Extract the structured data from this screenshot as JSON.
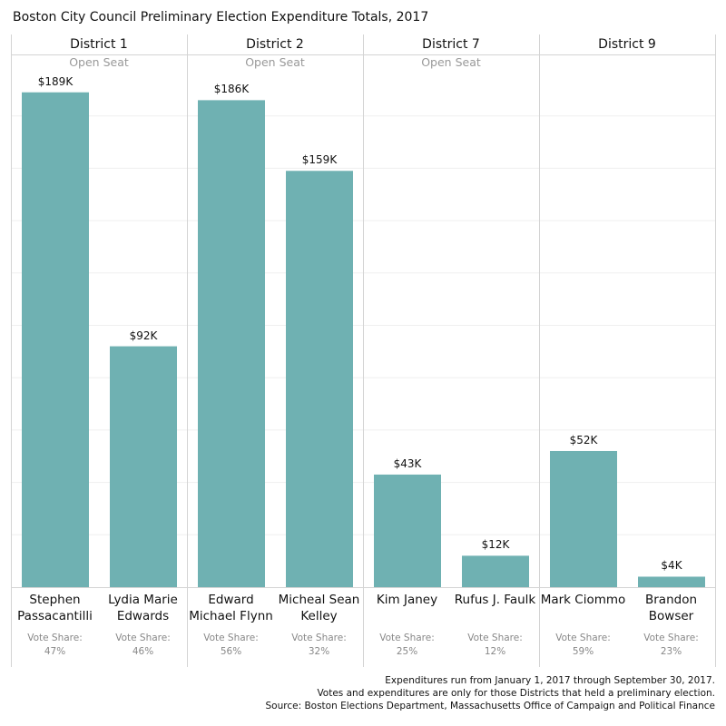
{
  "title": "Boston City Council Preliminary Election Expenditure Totals, 2017",
  "chart_data": {
    "type": "bar",
    "title": "Boston City Council Preliminary Election Expenditure Totals, 2017",
    "ylim": [
      0,
      200
    ],
    "grid": true,
    "bar_color": "#6fb1b2",
    "vote_share_label": "Vote Share:",
    "districts": [
      {
        "name": "District 1",
        "subtitle": "Open Seat",
        "candidates": [
          {
            "name": [
              "Stephen",
              "Passacantilli"
            ],
            "value": 189,
            "label": "$189K",
            "vote_share": "47%"
          },
          {
            "name": [
              "Lydia Marie",
              "Edwards"
            ],
            "value": 92,
            "label": "$92K",
            "vote_share": "46%"
          }
        ]
      },
      {
        "name": "District 2",
        "subtitle": "Open Seat",
        "candidates": [
          {
            "name": [
              "Edward",
              "Michael Flynn"
            ],
            "value": 186,
            "label": "$186K",
            "vote_share": "56%"
          },
          {
            "name": [
              "Micheal Sean",
              "Kelley"
            ],
            "value": 159,
            "label": "$159K",
            "vote_share": "32%"
          }
        ]
      },
      {
        "name": "District 7",
        "subtitle": "Open Seat",
        "candidates": [
          {
            "name": [
              "Kim Janey"
            ],
            "value": 43,
            "label": "$43K",
            "vote_share": "25%"
          },
          {
            "name": [
              "Rufus J. Faulk"
            ],
            "value": 12,
            "label": "$12K",
            "vote_share": "12%"
          }
        ]
      },
      {
        "name": "District 9",
        "subtitle": "",
        "candidates": [
          {
            "name": [
              "Mark Ciommo"
            ],
            "value": 52,
            "label": "$52K",
            "vote_share": "59%"
          },
          {
            "name": [
              "Brandon",
              "Bowser"
            ],
            "value": 4,
            "label": "$4K",
            "vote_share": "23%"
          }
        ]
      }
    ]
  },
  "footer": [
    "Expenditures run from January 1, 2017 through September 30, 2017.",
    "Votes and expenditures are only for those Districts that held a preliminary election.",
    "Source: Boston Elections Department, Massachusetts Office of Campaign and Political Finance"
  ]
}
